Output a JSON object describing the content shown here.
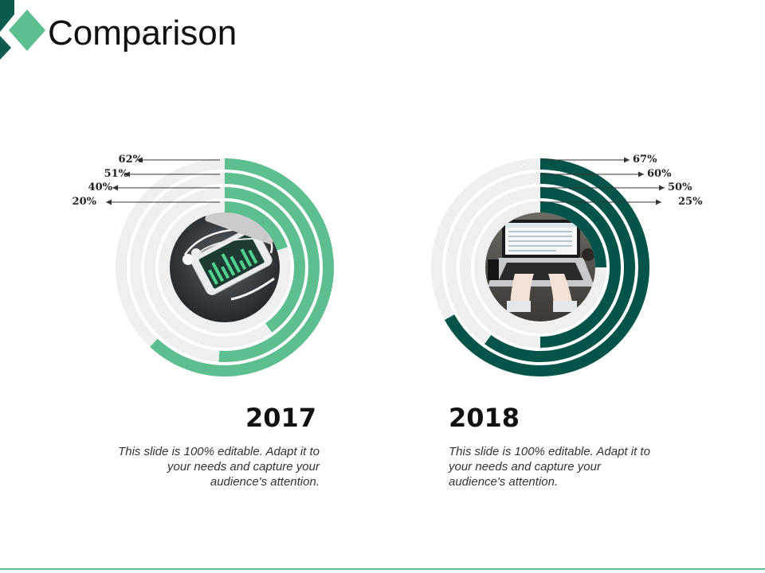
{
  "slide": {
    "title": "Comparison"
  },
  "colors": {
    "accent_light": "#5dbf90",
    "accent_dark": "#045449",
    "track": "#efefef"
  },
  "chart_data": [
    {
      "type": "radial-bar",
      "title": "2017",
      "values": [
        62,
        51,
        40,
        20
      ],
      "labels": [
        "62%",
        "51%",
        "40%",
        "20%"
      ],
      "unit": "%",
      "color": "#5dbf90",
      "photo": "phone-with-earphones",
      "description": "This slide is 100% editable. Adapt it to your needs and capture your audience's attention."
    },
    {
      "type": "radial-bar",
      "title": "2018",
      "values": [
        67,
        60,
        50,
        25
      ],
      "labels": [
        "67%",
        "60%",
        "50%",
        "25%"
      ],
      "unit": "%",
      "color": "#045449",
      "photo": "laptop-typing",
      "description": "This slide is 100% editable. Adapt it to your needs and capture your audience's attention."
    }
  ]
}
